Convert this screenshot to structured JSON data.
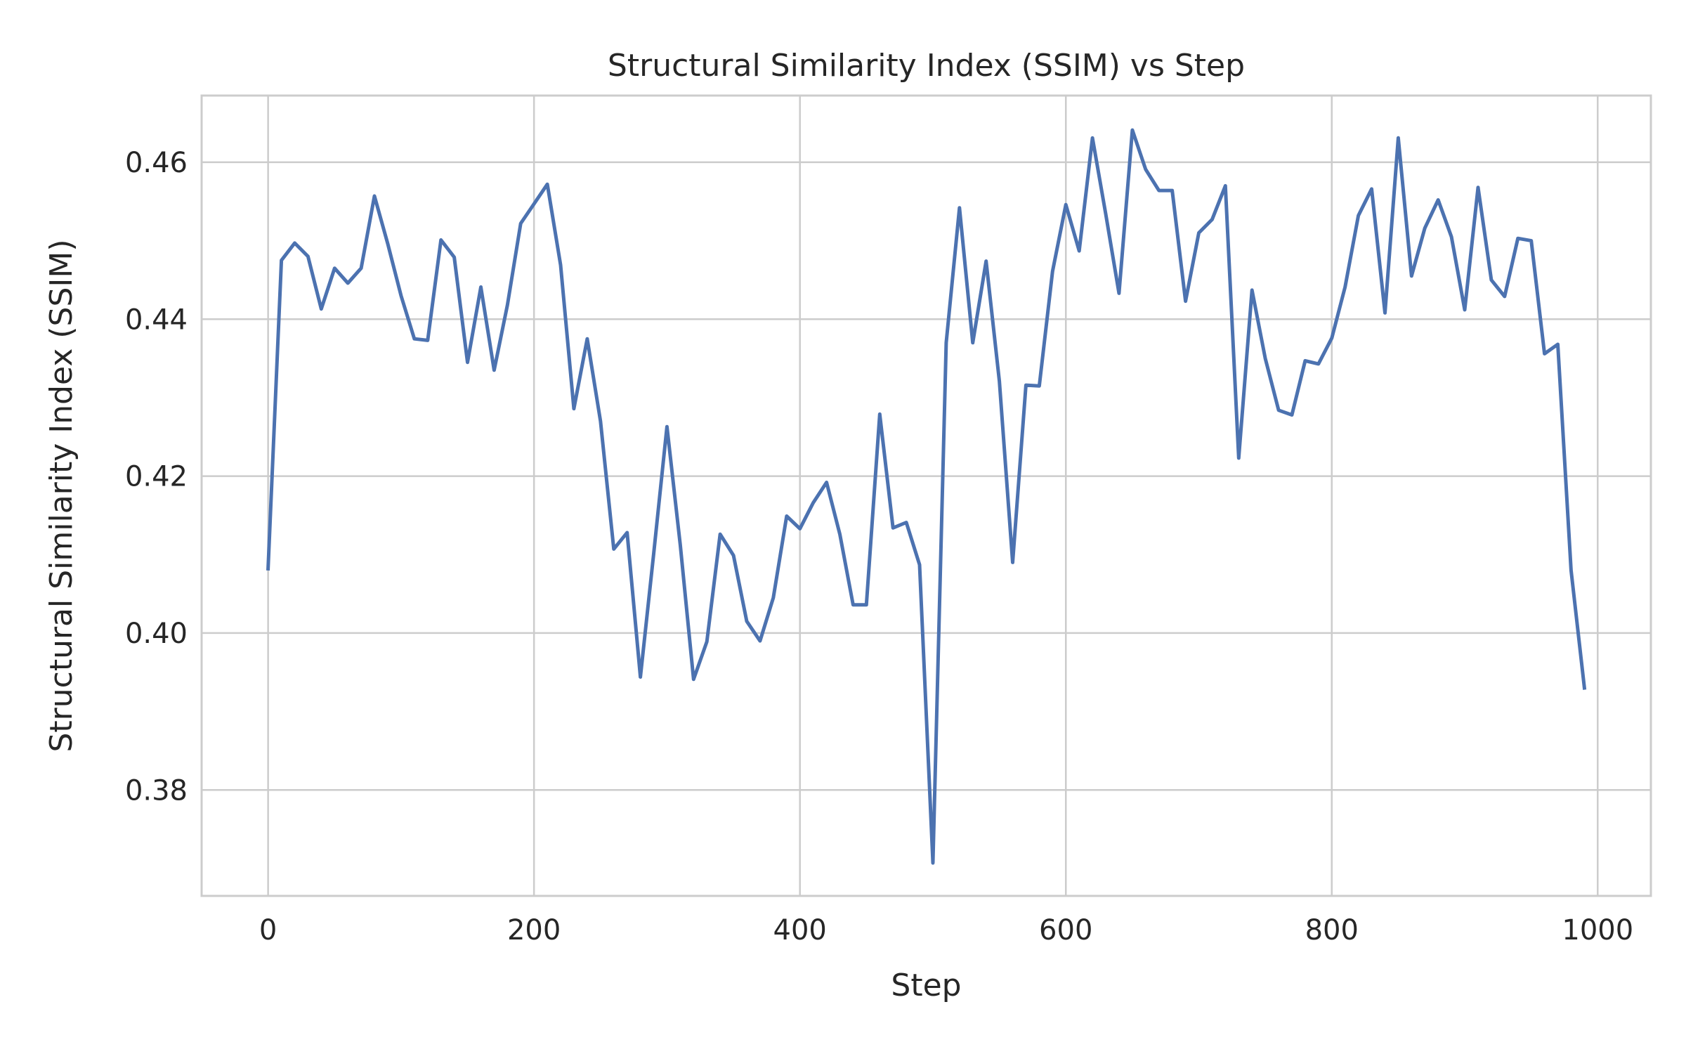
{
  "chart_data": {
    "type": "line",
    "title": "Structural Similarity Index (SSIM) vs Step",
    "xlabel": "Step",
    "ylabel": "Structural Similarity Index (SSIM)",
    "xlim": [
      -50,
      1040
    ],
    "ylim": [
      0.3665,
      0.4685
    ],
    "xticks": [
      0,
      200,
      400,
      600,
      800,
      1000
    ],
    "xtick_labels": [
      "0",
      "200",
      "400",
      "600",
      "800",
      "1000"
    ],
    "yticks": [
      0.38,
      0.4,
      0.42,
      0.44,
      0.46
    ],
    "ytick_labels": [
      "0.38",
      "0.40",
      "0.42",
      "0.44",
      "0.46"
    ],
    "grid": true,
    "x": [
      0,
      10,
      20,
      30,
      40,
      50,
      60,
      70,
      80,
      90,
      100,
      110,
      120,
      130,
      140,
      150,
      160,
      170,
      180,
      190,
      200,
      210,
      220,
      230,
      240,
      250,
      260,
      270,
      280,
      290,
      300,
      310,
      320,
      330,
      340,
      350,
      360,
      370,
      380,
      390,
      400,
      410,
      420,
      430,
      440,
      450,
      460,
      470,
      480,
      490,
      500,
      510,
      520,
      530,
      540,
      550,
      560,
      570,
      580,
      590,
      600,
      610,
      620,
      630,
      640,
      650,
      660,
      670,
      680,
      690,
      700,
      710,
      720,
      730,
      740,
      750,
      760,
      770,
      780,
      790,
      800,
      810,
      820,
      830,
      840,
      850,
      860,
      870,
      880,
      890,
      900,
      910,
      920,
      930,
      940,
      950,
      960,
      970,
      980,
      990
    ],
    "series": [
      {
        "name": "",
        "color": "#4c72b0",
        "values": [
          0.4082,
          0.4475,
          0.4497,
          0.448,
          0.4413,
          0.4465,
          0.4446,
          0.4465,
          0.4557,
          0.4496,
          0.443,
          0.4375,
          0.4373,
          0.4501,
          0.4479,
          0.4345,
          0.4441,
          0.4335,
          0.4418,
          0.4522,
          0.4547,
          0.4572,
          0.4469,
          0.4286,
          0.4375,
          0.427,
          0.4107,
          0.4128,
          0.3944,
          0.4101,
          0.4263,
          0.4112,
          0.3941,
          0.3989,
          0.4126,
          0.4099,
          0.4015,
          0.399,
          0.4045,
          0.4149,
          0.4133,
          0.4166,
          0.4192,
          0.4126,
          0.4036,
          0.4036,
          0.4279,
          0.4134,
          0.4141,
          0.4087,
          0.3707,
          0.437,
          0.4542,
          0.437,
          0.4474,
          0.4321,
          0.409,
          0.4316,
          0.4315,
          0.4461,
          0.4546,
          0.4487,
          0.4631,
          0.4534,
          0.4433,
          0.4641,
          0.4591,
          0.4564,
          0.4564,
          0.4423,
          0.451,
          0.4527,
          0.457,
          0.4223,
          0.4437,
          0.435,
          0.4284,
          0.4278,
          0.4347,
          0.4343,
          0.4376,
          0.4441,
          0.4532,
          0.4566,
          0.4408,
          0.4631,
          0.4455,
          0.4516,
          0.4552,
          0.4505,
          0.4412,
          0.4568,
          0.445,
          0.4429,
          0.4503,
          0.45,
          0.4356,
          0.4368,
          0.408,
          0.393
        ]
      }
    ]
  }
}
